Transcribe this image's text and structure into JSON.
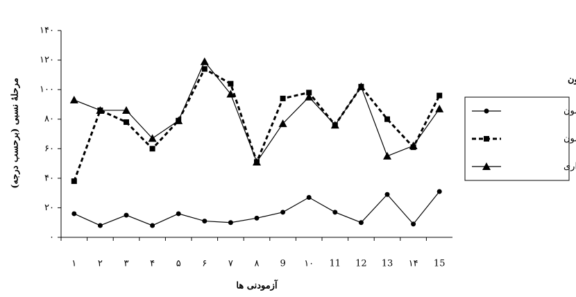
{
  "chart_data": {
    "type": "line",
    "y_label": "مرحلهٔ نسبی (برحسب درجه)",
    "x_label": "آزمودنی ها",
    "legend_title": "مراحل آزمون",
    "categories": [
      "۱",
      "۲",
      "۳",
      "۴",
      "۵",
      "۶",
      "۷",
      "۸",
      "9",
      "۱۰",
      "11",
      "12",
      "13",
      "۱۴",
      "15"
    ],
    "series": [
      {
        "name": "پیش آزمون",
        "color": "#000000",
        "marker": "circle",
        "dash": false,
        "values": [
          16,
          8,
          15,
          8,
          16,
          11,
          10,
          13,
          17,
          27,
          17,
          10,
          29,
          9,
          31
        ]
      },
      {
        "name": "پس آزمون",
        "color": "#000000",
        "marker": "square",
        "dash": true,
        "values": [
          38,
          86,
          78,
          60,
          79,
          114,
          104,
          51,
          94,
          98,
          76,
          102,
          80,
          61,
          96
        ]
      },
      {
        "name": "آزمون یادداری",
        "color": "#000000",
        "marker": "triangle",
        "dash": false,
        "values": [
          93,
          86,
          86,
          67,
          79,
          119,
          97,
          51,
          77,
          95,
          76,
          102,
          55,
          62,
          87
        ]
      }
    ],
    "ylim": [
      0,
      140
    ],
    "yticks": [
      {
        "value": 0,
        "label": "۰"
      },
      {
        "value": 20,
        "label": "۲۰"
      },
      {
        "value": 40,
        "label": "۴۰"
      },
      {
        "value": 60,
        "label": "۶۰"
      },
      {
        "value": 80,
        "label": "۸۰"
      },
      {
        "value": 100,
        "label": "۱۰۰"
      },
      {
        "value": 120,
        "label": "۱۲۰"
      },
      {
        "value": 140,
        "label": "۱۴۰"
      }
    ]
  }
}
